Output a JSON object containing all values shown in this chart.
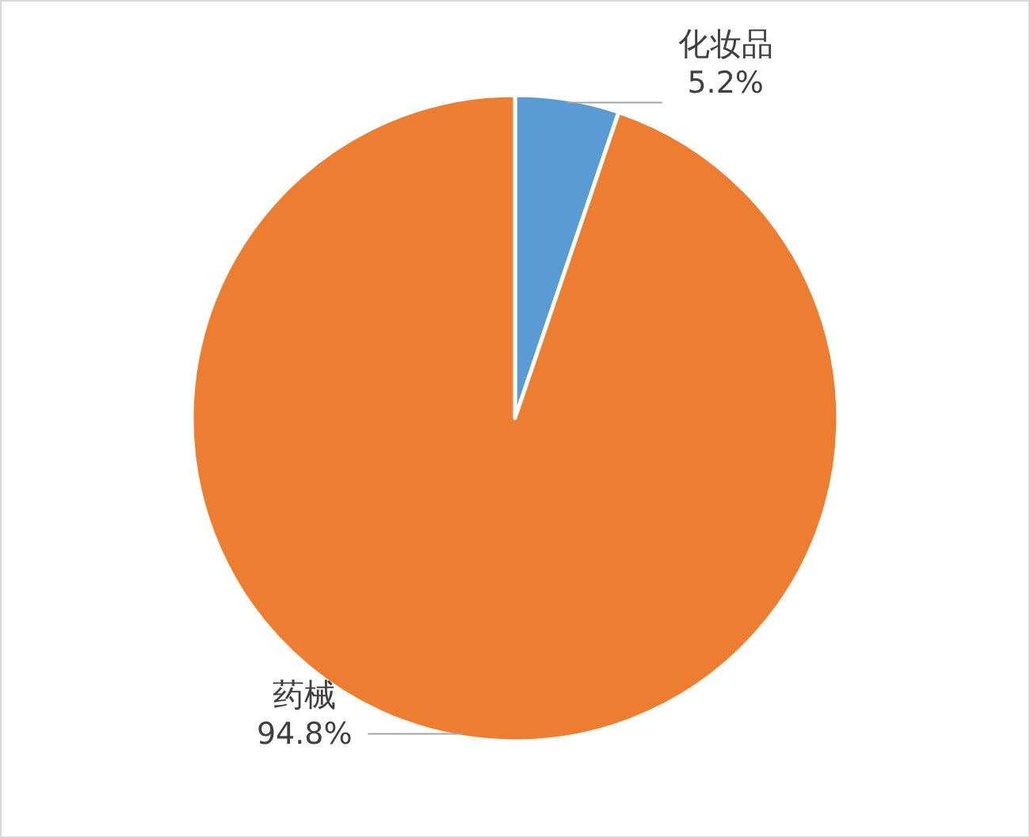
{
  "chart_data": {
    "type": "pie",
    "categories": [
      "化妆品",
      "药械"
    ],
    "values": [
      5.2,
      94.8
    ],
    "value_labels": [
      "5.2%",
      "94.8%"
    ],
    "colors": [
      "#5b9bd5",
      "#ed7d31"
    ]
  }
}
